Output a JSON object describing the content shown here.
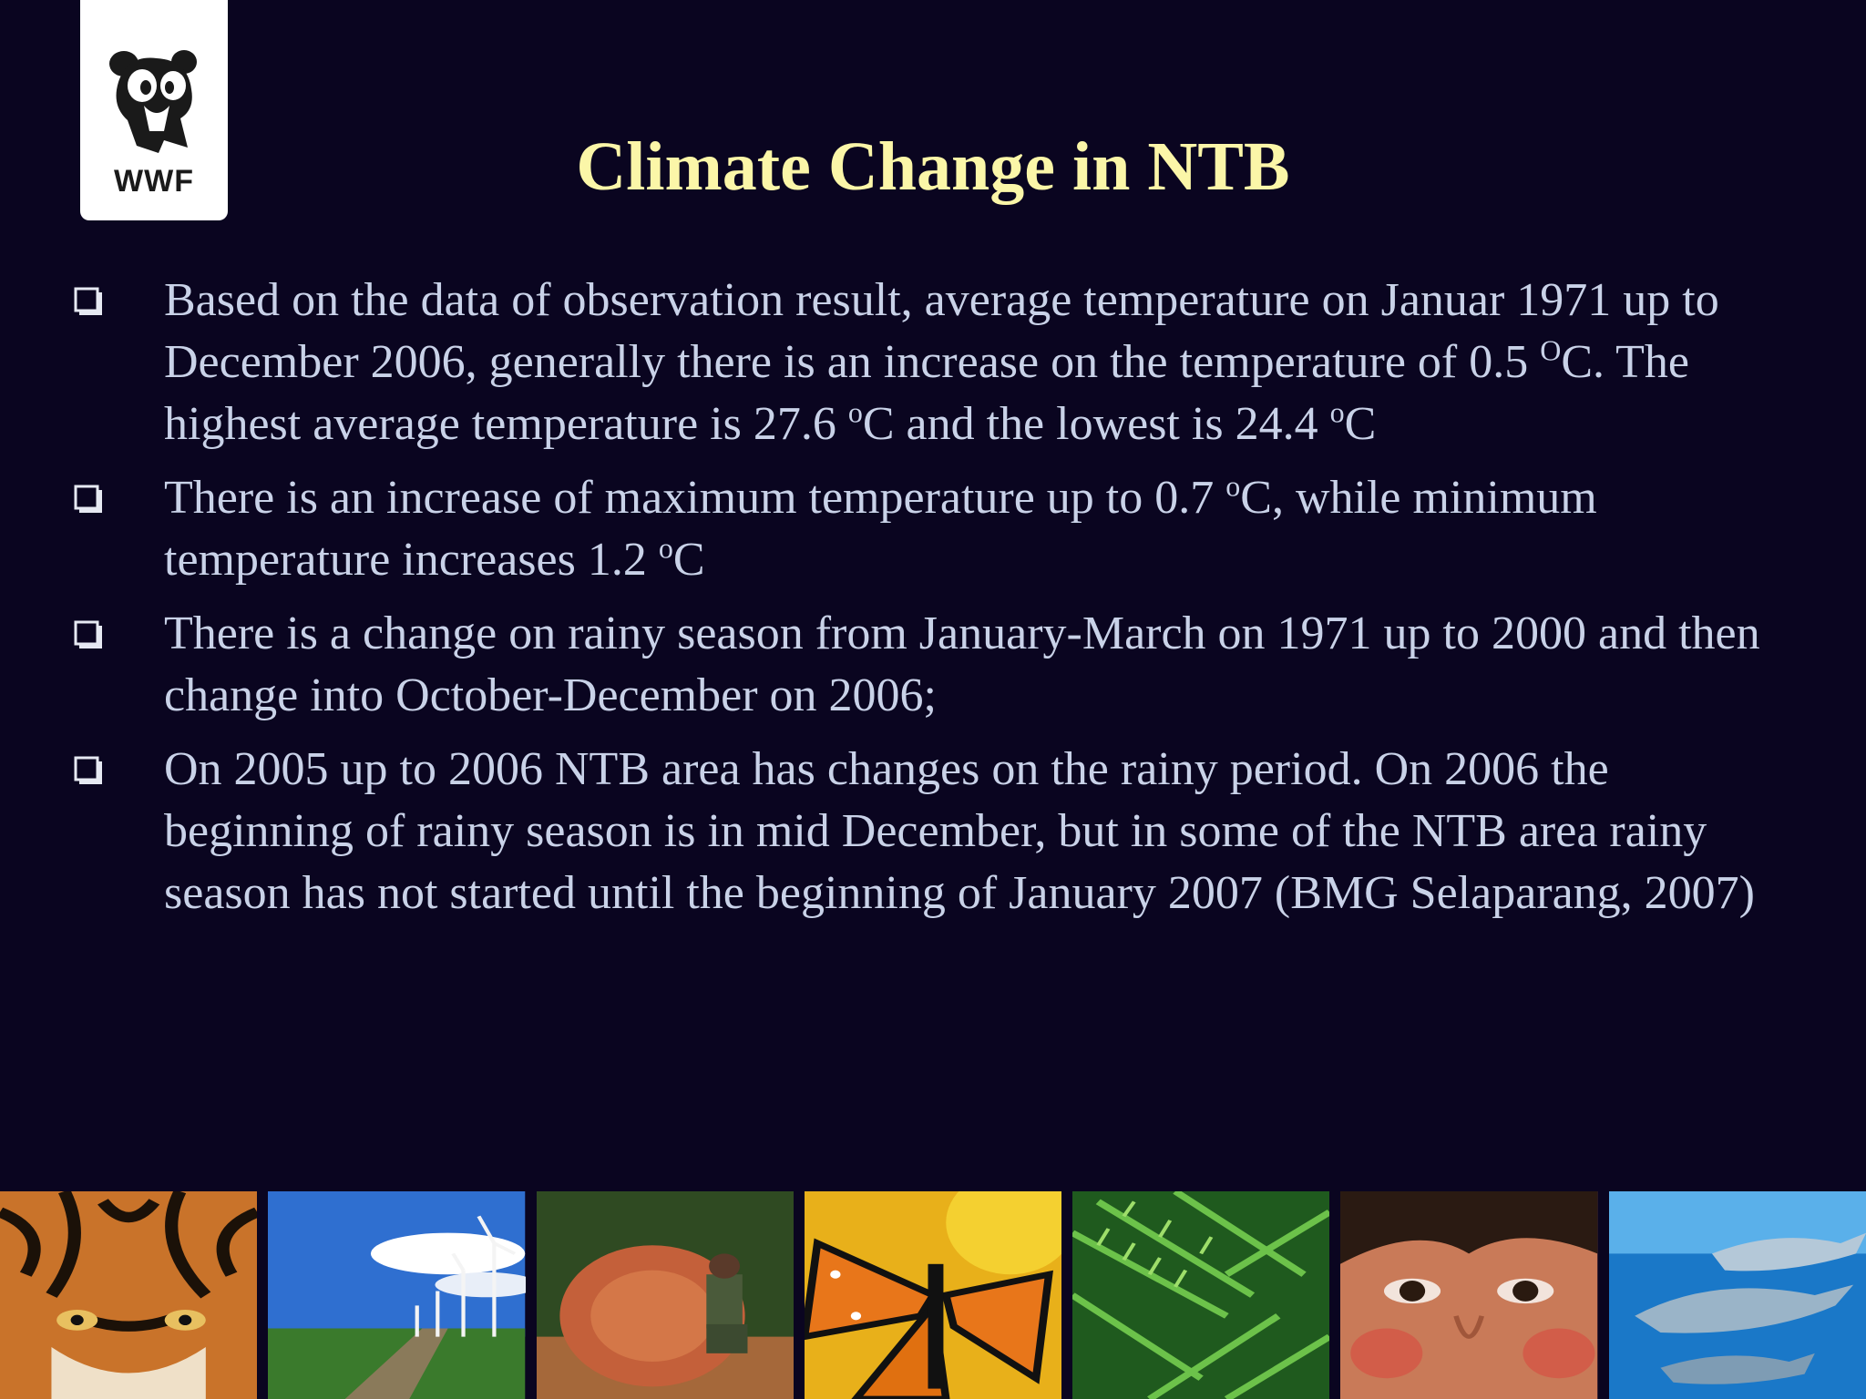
{
  "logo": {
    "text": "WWF"
  },
  "title": "Climate Change in NTB",
  "bullets": [
    {
      "pre": "Based on the data of observation result, average temperature on  Januar 1971 up to December 2006, generally there is an increase on the temperature of 0.5 ",
      "sup1": "O",
      "mid": "C. The highest average temperature is 27.6 ",
      "sup2": "o",
      "mid2": "C and the lowest is 24.4 ",
      "sup3": "o",
      "post": "C"
    },
    {
      "pre": "There is an increase of maximum temperature up to 0.7 ",
      "sup1": "o",
      "mid": "C, while minimum temperature increases 1.2 ",
      "sup2": "o",
      "post": "C"
    },
    {
      "text": "There is a change on rainy season from January-March on 1971 up to 2000 and then change into  October-December on 2006;"
    },
    {
      "text": "On 2005 up to 2006 NTB area has changes on the rainy period. On 2006 the beginning of rainy season is in mid December, but in some of the NTB area rainy season has not started until the beginning of January 2007 (BMG Selaparang, 2007)"
    }
  ],
  "photo_strip": [
    "tiger-photo",
    "wind-turbines-photo",
    "logging-photo",
    "butterfly-photo",
    "fern-photo",
    "child-face-photo",
    "dolphins-photo"
  ],
  "colors": {
    "background": "#0a0520",
    "title": "#fbf6a8",
    "body_text": "#c9d2e8"
  }
}
